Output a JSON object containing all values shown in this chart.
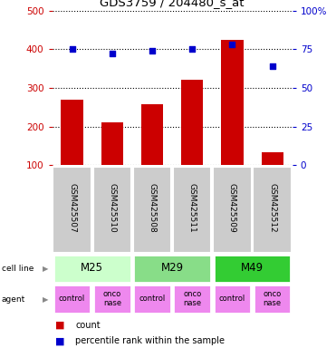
{
  "title": "GDS3759 / 204480_s_at",
  "samples": [
    "GSM425507",
    "GSM425510",
    "GSM425508",
    "GSM425511",
    "GSM425509",
    "GSM425512"
  ],
  "counts": [
    270,
    210,
    258,
    322,
    425,
    133
  ],
  "percentile_ranks": [
    75,
    72,
    74,
    75,
    78,
    64
  ],
  "cell_lines": [
    [
      "M25",
      0,
      2
    ],
    [
      "M29",
      2,
      4
    ],
    [
      "M49",
      4,
      6
    ]
  ],
  "agents": [
    "control",
    "onconase",
    "control",
    "onconase",
    "control",
    "onconase"
  ],
  "bar_color": "#cc0000",
  "dot_color": "#0000cc",
  "ylim_left": [
    100,
    500
  ],
  "ylim_right": [
    0,
    100
  ],
  "yticks_left": [
    100,
    200,
    300,
    400,
    500
  ],
  "yticks_right": [
    0,
    25,
    50,
    75,
    100
  ],
  "cell_line_colors": {
    "M25": "#ccffcc",
    "M29": "#88dd88",
    "M49": "#33cc33"
  },
  "agent_color": "#ee88ee",
  "sample_bg_color": "#cccccc",
  "legend_count_color": "#cc0000",
  "legend_pct_color": "#0000cc"
}
